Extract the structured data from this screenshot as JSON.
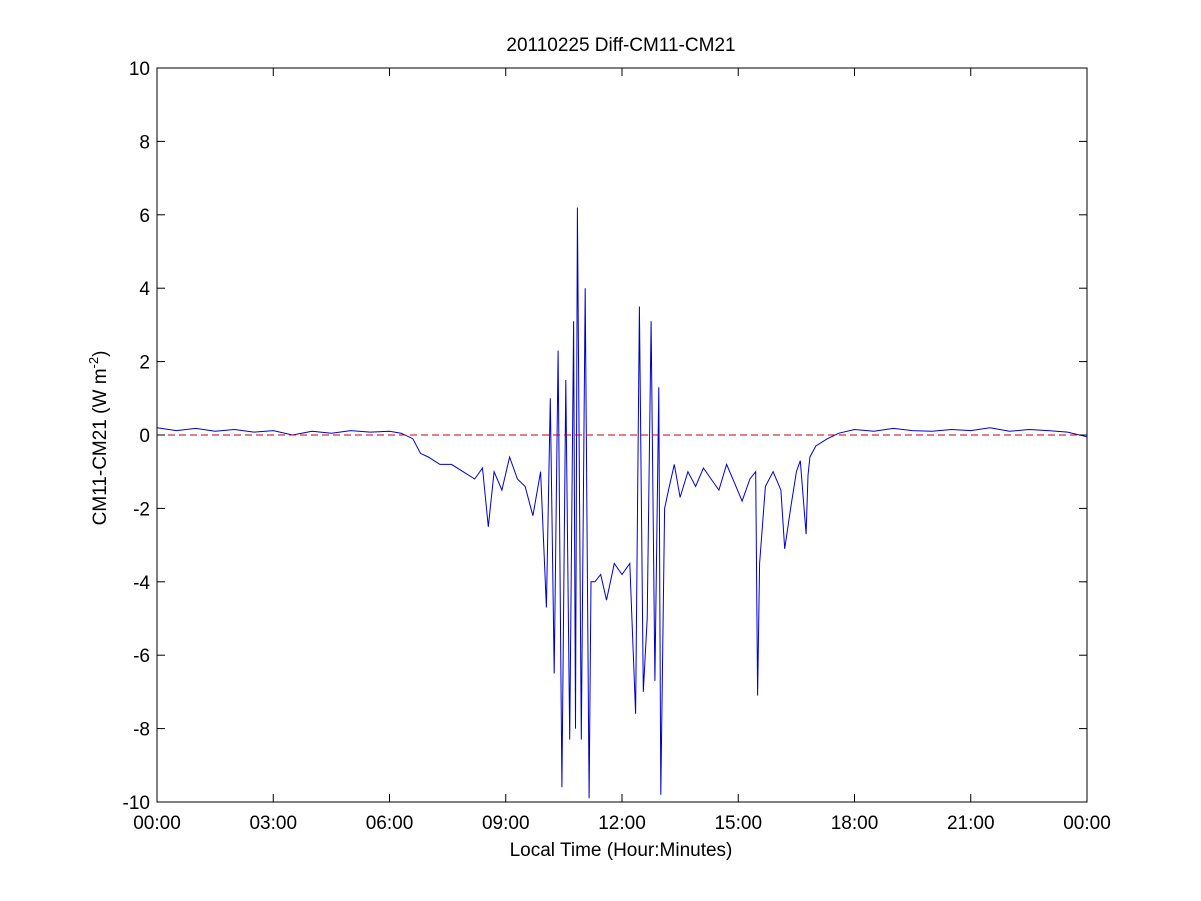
{
  "chart_data": {
    "type": "line",
    "title": "20110225 Diff-CM11-CM21",
    "xlabel": "Local Time (Hour:Minutes)",
    "ylabel": {
      "text": "CM11-CM21 (W m",
      "superscript": "-2",
      "close": ")"
    },
    "x_unit": "hours",
    "xlim": [
      0,
      24
    ],
    "ylim": [
      -10,
      10
    ],
    "x_ticks": [
      0,
      3,
      6,
      9,
      12,
      15,
      18,
      21,
      24
    ],
    "x_tick_labels": [
      "00:00",
      "03:00",
      "06:00",
      "09:00",
      "12:00",
      "15:00",
      "18:00",
      "21:00",
      "00:00"
    ],
    "y_ticks": [
      -10,
      -8,
      -6,
      -4,
      -2,
      0,
      2,
      4,
      6,
      8,
      10
    ],
    "y_tick_labels": [
      "-10",
      "-8",
      "-6",
      "-4",
      "-2",
      "0",
      "2",
      "4",
      "6",
      "8",
      "10"
    ],
    "grid": false,
    "reference_line": {
      "y": 0,
      "style": "dashed",
      "color": "#cc0000"
    },
    "series": [
      {
        "color": "#0000cc",
        "x": [
          0,
          0.5,
          1,
          1.5,
          2,
          2.5,
          3,
          3.5,
          4,
          4.5,
          5,
          5.5,
          6,
          6.3,
          6.6,
          6.8,
          7,
          7.3,
          7.6,
          7.9,
          8.2,
          8.4,
          8.55,
          8.7,
          8.9,
          9.1,
          9.3,
          9.5,
          9.7,
          9.9,
          10.05,
          10.15,
          10.25,
          10.35,
          10.45,
          10.55,
          10.65,
          10.75,
          10.8,
          10.85,
          10.95,
          11.05,
          11.15,
          11.2,
          11.3,
          11.45,
          11.6,
          11.8,
          12.0,
          12.2,
          12.35,
          12.45,
          12.55,
          12.65,
          12.75,
          12.85,
          12.95,
          13.0,
          13.1,
          13.2,
          13.35,
          13.5,
          13.7,
          13.9,
          14.1,
          14.3,
          14.5,
          14.7,
          14.9,
          15.1,
          15.3,
          15.45,
          15.5,
          15.55,
          15.7,
          15.9,
          16.1,
          16.2,
          16.35,
          16.5,
          16.6,
          16.75,
          16.8,
          16.85,
          17.0,
          17.3,
          17.6,
          18,
          18.5,
          19,
          19.5,
          20,
          20.5,
          21,
          21.5,
          22,
          22.5,
          23,
          23.5,
          24
        ],
        "y": [
          0.2,
          0.12,
          0.18,
          0.1,
          0.15,
          0.08,
          0.12,
          0.0,
          0.1,
          0.05,
          0.12,
          0.08,
          0.1,
          0.05,
          -0.1,
          -0.5,
          -0.6,
          -0.8,
          -0.8,
          -1.0,
          -1.2,
          -0.9,
          -2.5,
          -1.0,
          -1.5,
          -0.6,
          -1.2,
          -1.4,
          -2.2,
          -1.0,
          -4.7,
          1.0,
          -6.5,
          2.3,
          -9.6,
          1.5,
          -8.3,
          3.1,
          -8.0,
          6.2,
          -8.3,
          4.0,
          -9.9,
          -4.0,
          -4.0,
          -3.8,
          -4.5,
          -3.5,
          -3.8,
          -3.5,
          -7.6,
          3.5,
          -7.0,
          -5.0,
          3.1,
          -6.7,
          1.3,
          -9.8,
          -2.0,
          -1.5,
          -0.8,
          -1.7,
          -1.0,
          -1.4,
          -0.9,
          -1.2,
          -1.5,
          -0.8,
          -1.3,
          -1.8,
          -1.2,
          -1.0,
          -7.1,
          -3.5,
          -1.4,
          -1.0,
          -1.5,
          -3.1,
          -2.0,
          -1.0,
          -0.7,
          -2.7,
          -1.1,
          -0.6,
          -0.3,
          -0.1,
          0.05,
          0.15,
          0.1,
          0.18,
          0.12,
          0.1,
          0.15,
          0.12,
          0.2,
          0.1,
          0.15,
          0.12,
          0.08,
          -0.05
        ]
      }
    ]
  }
}
